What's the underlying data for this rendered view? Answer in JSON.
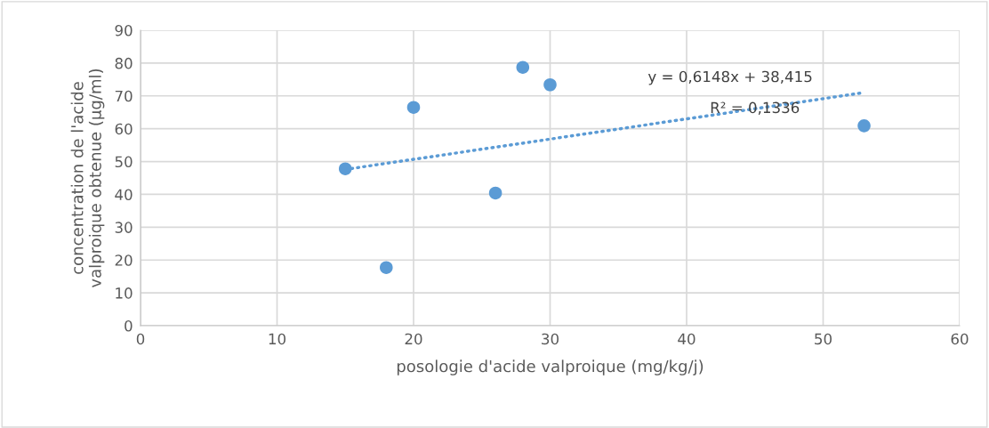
{
  "chart_data": {
    "type": "scatter",
    "xlabel": "posologie d'acide valproique (mg/kg/j)",
    "ylabel": "concentration de l'acide\nvalproique obtenue (µg/ml)",
    "x": [
      15,
      18,
      20,
      26,
      28,
      30,
      53
    ],
    "series": [
      {
        "color": "#5b9bd5",
        "values": [
          47.8,
          17.7,
          66.5,
          40.4,
          78.7,
          73.4,
          60.9
        ],
        "marker": "circle"
      },
      {
        "type": "line",
        "color": "#5b9bd5",
        "x": [
          15,
          53
        ],
        "values": [
          47.6,
          71.0
        ],
        "line_style": "dotted",
        "marker": "none"
      }
    ],
    "annotations": [
      "y = 0,6148x + 38,415",
      "R² = 0,1336"
    ],
    "xlim": [
      0,
      60
    ],
    "xticks": [
      0,
      10,
      20,
      30,
      40,
      50,
      60
    ],
    "ylim": [
      0,
      90
    ],
    "yticks": [
      0,
      10,
      20,
      30,
      40,
      50,
      60,
      70,
      80,
      90
    ],
    "grid": true,
    "legend": false
  }
}
